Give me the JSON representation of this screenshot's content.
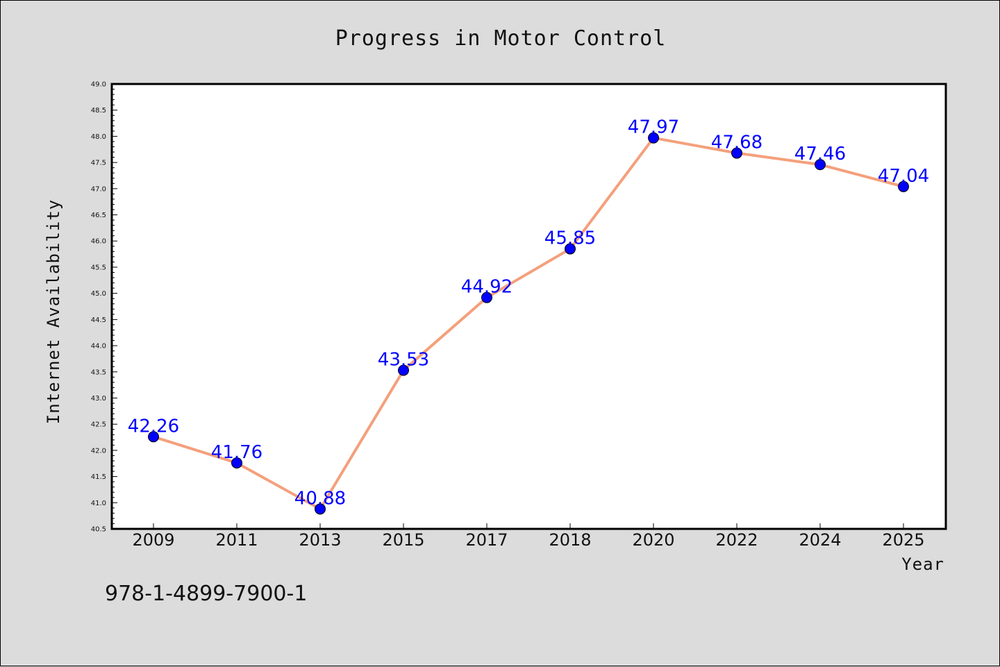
{
  "chart_data": {
    "type": "line",
    "title": "Progress in Motor Control",
    "xlabel": "Year",
    "ylabel": "Internet Availability",
    "categories": [
      "2009",
      "2011",
      "2013",
      "2015",
      "2017",
      "2018",
      "2020",
      "2022",
      "2024",
      "2025"
    ],
    "series": [
      {
        "values": [
          42.26,
          41.76,
          40.88,
          43.53,
          44.92,
          45.85,
          47.97,
          47.68,
          47.46,
          47.04
        ]
      }
    ],
    "data_labels": [
      "42.26",
      "41.76",
      "40.88",
      "43.53",
      "44.92",
      "45.85",
      "47.97",
      "47.68",
      "47.46",
      "47.04"
    ],
    "ylim": [
      40.5,
      49.0
    ],
    "yticks": [
      "40.5",
      "41.0",
      "41.5",
      "42.0",
      "42.5",
      "43.0",
      "43.5",
      "44.0",
      "44.5",
      "45.0",
      "45.5",
      "46.0",
      "46.5",
      "47.0",
      "47.5",
      "48.0",
      "48.5",
      "49.0"
    ],
    "grid": false,
    "line_color": "#f4a07c",
    "marker_color": "#0000ff",
    "label_color": "#0000ff"
  },
  "footnote": "978-1-4899-7900-1"
}
